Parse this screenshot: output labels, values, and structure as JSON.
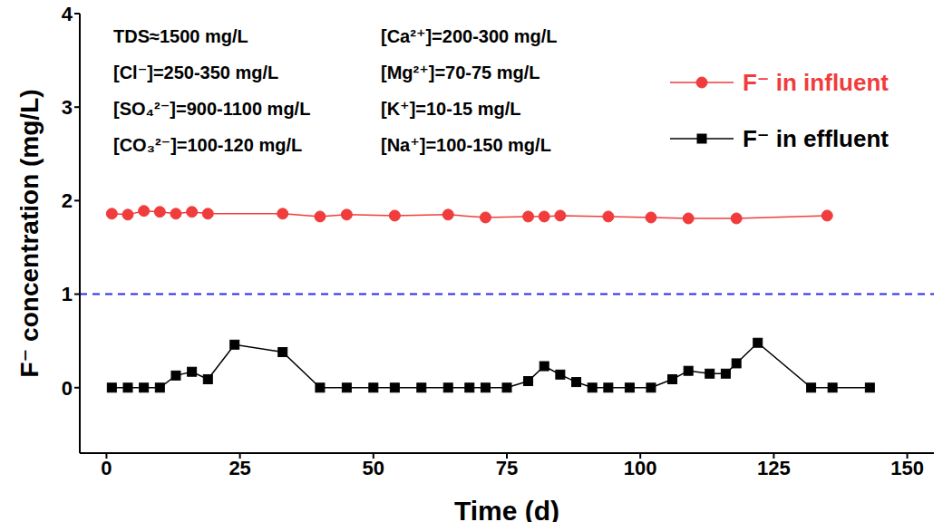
{
  "chart_data": {
    "type": "line",
    "x_label": "Time (d)",
    "y_label": "F⁻ concentration (mg/L)",
    "xlim": [
      -5,
      155
    ],
    "xticks": [
      0,
      25,
      50,
      75,
      100,
      125,
      150
    ],
    "ylim": [
      -0.7,
      4
    ],
    "yticks": [
      0,
      1,
      2,
      3,
      4
    ],
    "legend": "upper right",
    "series": [
      {
        "name": "F⁻ in influent",
        "color": "#f03c3c",
        "marker": "circle",
        "x": [
          1,
          4,
          7,
          10,
          13,
          16,
          19,
          33,
          40,
          45,
          54,
          64,
          71,
          79,
          82,
          85,
          94,
          102,
          109,
          118,
          135
        ],
        "values": [
          1.86,
          1.85,
          1.89,
          1.88,
          1.86,
          1.88,
          1.86,
          1.86,
          1.83,
          1.85,
          1.84,
          1.85,
          1.82,
          1.83,
          1.83,
          1.84,
          1.83,
          1.82,
          1.81,
          1.81,
          1.84
        ]
      },
      {
        "name": "F⁻ in effluent",
        "color": "#000000",
        "marker": "square",
        "x": [
          1,
          4,
          7,
          10,
          13,
          16,
          19,
          24,
          33,
          40,
          45,
          50,
          54,
          59,
          64,
          68,
          71,
          75,
          79,
          82,
          85,
          88,
          91,
          94,
          98,
          102,
          106,
          109,
          113,
          116,
          118,
          122,
          132,
          136,
          143
        ],
        "values": [
          0,
          0,
          0,
          0,
          0.13,
          0.17,
          0.09,
          0.46,
          0.38,
          0,
          0,
          0,
          0,
          0,
          0,
          0,
          0,
          0,
          0.07,
          0.23,
          0.14,
          0.06,
          0,
          0,
          0,
          0,
          0.09,
          0.18,
          0.15,
          0.15,
          0.26,
          0.48,
          0,
          0,
          0
        ]
      }
    ],
    "hlines": [
      {
        "y": 1,
        "color": "#2b2bf0",
        "line_style": "dashed"
      }
    ],
    "annotations": [
      [
        "TDS≈1500 mg/L",
        "[Cl⁻]=250-350 mg/L",
        "[SO₄²⁻]=900-1100 mg/L",
        "[CO₃²⁻]=100-120 mg/L"
      ],
      [
        "[Ca²⁺]=200-300 mg/L",
        "[Mg²⁺]=70-75 mg/L",
        "[K⁺]=10-15 mg/L",
        "[Na⁺]=100-150 mg/L"
      ]
    ]
  }
}
